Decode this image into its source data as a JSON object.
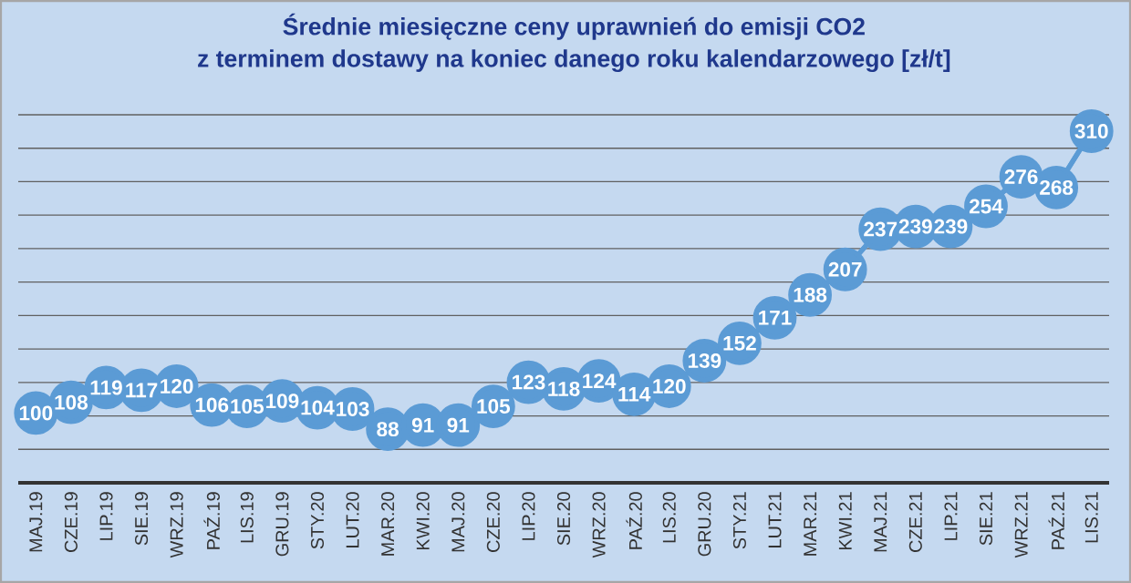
{
  "chart_data": {
    "type": "line",
    "title": "Średnie miesięczne ceny uprawnień do emisji CO2",
    "subtitle": "z terminem dostawy na koniec danego roku kalendarzowego [zł/t]",
    "categories": [
      "MAJ.19",
      "CZE.19",
      "LIP.19",
      "SIE.19",
      "WRZ.19",
      "PAŹ.19",
      "LIS.19",
      "GRU.19",
      "STY.20",
      "LUT.20",
      "MAR.20",
      "KWI.20",
      "MAJ.20",
      "CZE.20",
      "LIP.20",
      "SIE.20",
      "WRZ.20",
      "PAŹ.20",
      "LIS.20",
      "GRU.20",
      "STY.21",
      "LUT.21",
      "MAR.21",
      "KWI.21",
      "MAJ.21",
      "CZE.21",
      "LIP.21",
      "SIE.21",
      "WRZ.21",
      "PAŹ.21",
      "LIS.21"
    ],
    "values": [
      100,
      108,
      119,
      117,
      120,
      106,
      105,
      109,
      104,
      103,
      88,
      91,
      91,
      105,
      123,
      118,
      124,
      114,
      120,
      139,
      152,
      171,
      188,
      207,
      237,
      239,
      239,
      254,
      276,
      268,
      310
    ],
    "color": "#5b9bd5",
    "tick_labels": "x",
    "grid": "y",
    "data_labels": true,
    "marker": "circle",
    "line_style": "solid"
  }
}
